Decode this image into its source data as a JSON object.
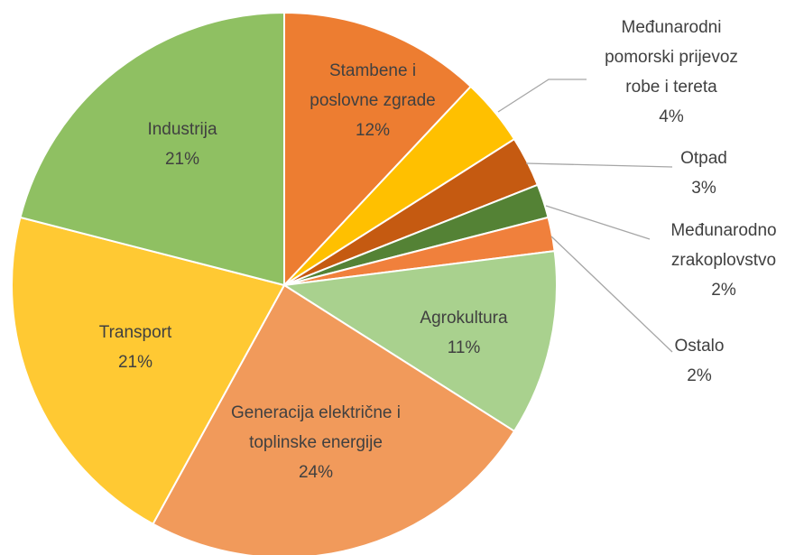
{
  "chart_data": {
    "type": "pie",
    "categories": [
      "Stambene i poslovne zgrade",
      "Međunarodni pomorski prijevoz robe i tereta",
      "Otpad",
      "Međunarodno zrakoplovstvo",
      "Ostalo",
      "Agrokultura",
      "Generacija električne i toplinske energije",
      "Transport",
      "Industrija"
    ],
    "values": [
      12,
      4,
      3,
      2,
      2,
      11,
      24,
      21,
      21
    ],
    "value_labels": [
      "12%",
      "4%",
      "3%",
      "2%",
      "2%",
      "11%",
      "24%",
      "21%",
      "21%"
    ],
    "colors": [
      "#ed7d31",
      "#ffc000",
      "#c55a11",
      "#548235",
      "#f0803c",
      "#a9d18e",
      "#f19a5b",
      "#ffc933",
      "#8fc062"
    ]
  }
}
